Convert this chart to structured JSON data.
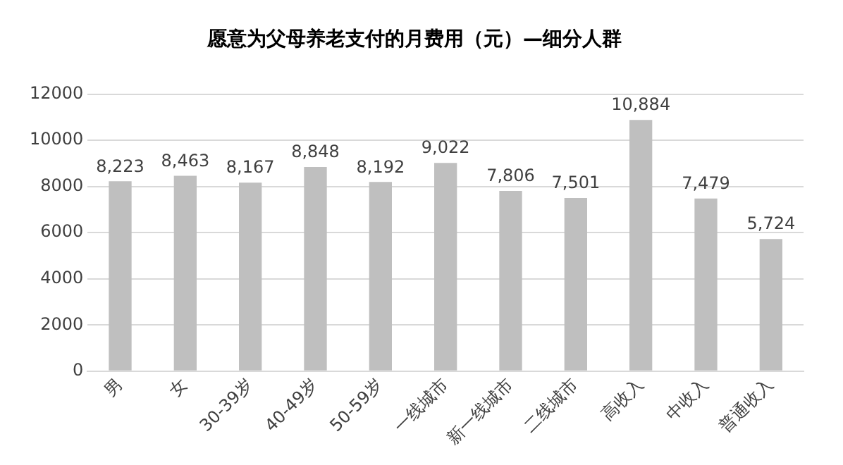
{
  "chart_data": {
    "type": "bar",
    "title": "愿意为父母养老支付的月费用（元）—细分人群",
    "categories": [
      "男",
      "女",
      "30-39岁",
      "40-49岁",
      "50-59岁",
      "一线城市",
      "新一线城市",
      "二线城市",
      "高收入",
      "中收入",
      "普通收入"
    ],
    "values": [
      8223,
      8463,
      8167,
      8848,
      8192,
      9022,
      7806,
      7501,
      10884,
      7479,
      5724
    ],
    "value_labels": [
      "8,223",
      "8,463",
      "8,167",
      "8,848",
      "8,192",
      "9,022",
      "7,806",
      "7,501",
      "10,884",
      "7,479",
      "5,724"
    ],
    "color": "#bfbfbf",
    "ylim": [
      0,
      12000
    ],
    "yticks": [
      0,
      2000,
      4000,
      6000,
      8000,
      10000,
      12000
    ],
    "grid": "y",
    "legend": false
  }
}
